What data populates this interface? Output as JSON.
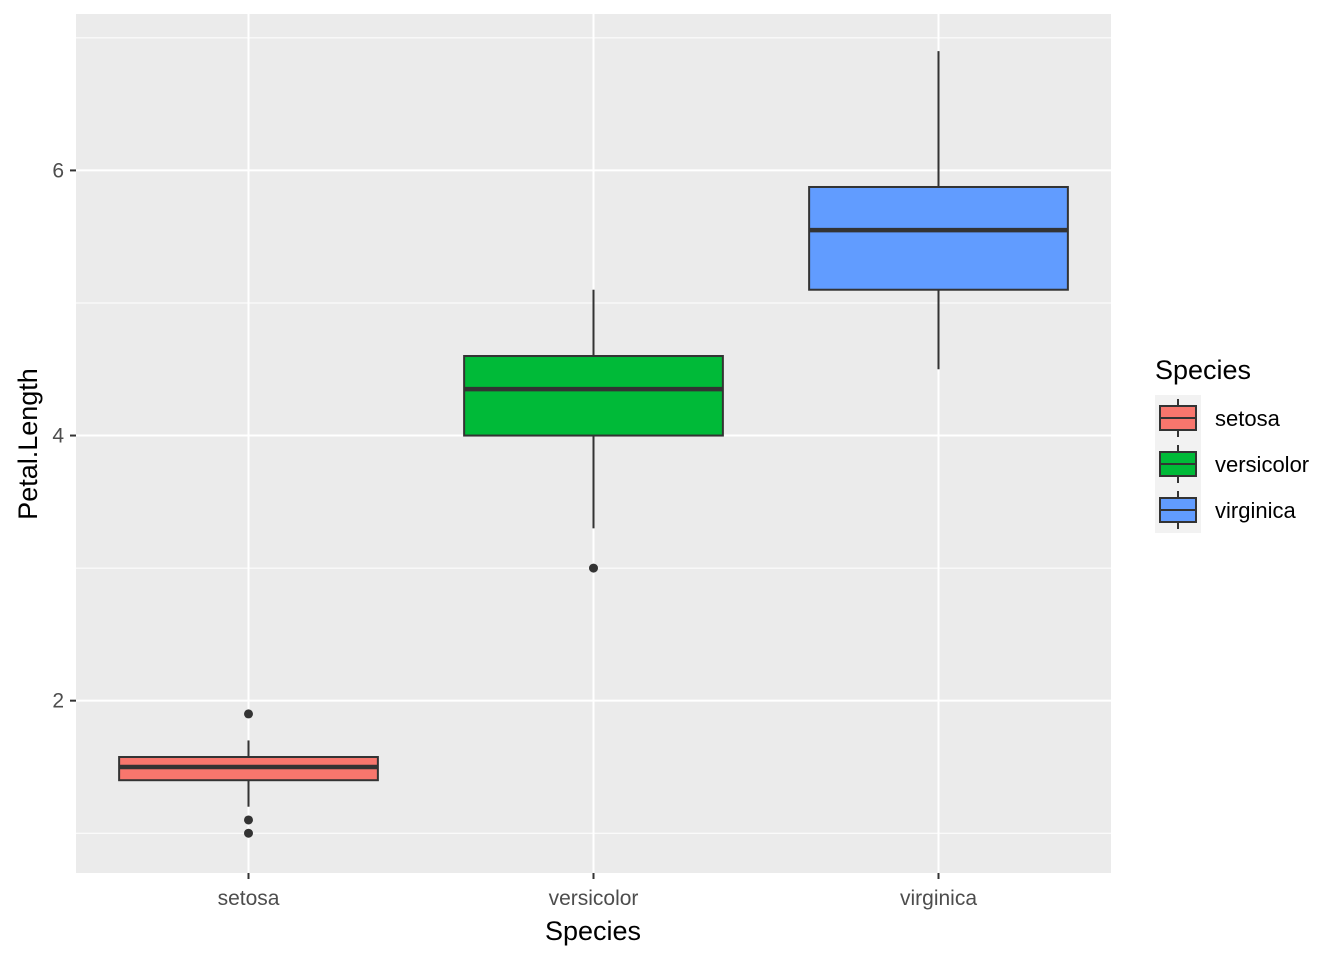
{
  "chart_data": {
    "type": "boxplot",
    "xlabel": "Species",
    "ylabel": "Petal.Length",
    "categories": [
      "setosa",
      "versicolor",
      "virginica"
    ],
    "ylim": [
      0.7,
      7.18
    ],
    "y_ticks": [
      2,
      4,
      6
    ],
    "y_minor_ticks": [
      1,
      3,
      5,
      7
    ],
    "grid": true,
    "boxes": [
      {
        "category": "setosa",
        "min": 1.2,
        "q1": 1.4,
        "median": 1.5,
        "q3": 1.575,
        "max": 1.7,
        "outliers": [
          1.9,
          1.1,
          1.0
        ],
        "color": "#F8766D"
      },
      {
        "category": "versicolor",
        "min": 3.3,
        "q1": 4.0,
        "median": 4.35,
        "q3": 4.6,
        "max": 5.1,
        "outliers": [
          3.0
        ],
        "color": "#00BA38"
      },
      {
        "category": "virginica",
        "min": 4.5,
        "q1": 5.1,
        "median": 5.55,
        "q3": 5.875,
        "max": 6.9,
        "outliers": [],
        "color": "#619CFF"
      }
    ],
    "legend": {
      "title": "Species",
      "position": "right",
      "entries": [
        {
          "label": "setosa",
          "color": "#F8766D"
        },
        {
          "label": "versicolor",
          "color": "#00BA38"
        },
        {
          "label": "virginica",
          "color": "#619CFF"
        }
      ]
    }
  }
}
